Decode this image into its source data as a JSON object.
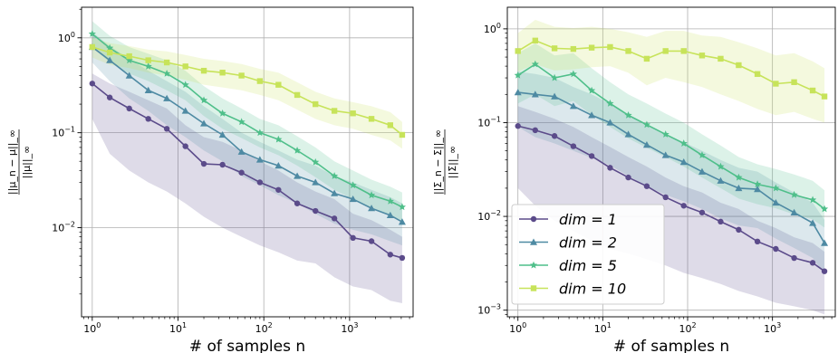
{
  "chart_data": [
    {
      "type": "line",
      "xscale": "log",
      "yscale": "log",
      "xlim": [
        0.75,
        5500
      ],
      "ylim": [
        0.00115,
        2.1
      ],
      "xlabel": "# of samples n",
      "ylabel_num": "||μ_n − μ||_∞",
      "ylabel_den": "||μ||_∞",
      "grid": true,
      "xticks": [
        {
          "value": 1,
          "base": "10",
          "exp": "0"
        },
        {
          "value": 10,
          "base": "10",
          "exp": "1"
        },
        {
          "value": 100,
          "base": "10",
          "exp": "2"
        },
        {
          "value": 1000,
          "base": "10",
          "exp": "3"
        }
      ],
      "yticks": [
        {
          "value": 0.01,
          "base": "10",
          "exp": "−2"
        },
        {
          "value": 0.1,
          "base": "10",
          "exp": "−1"
        },
        {
          "value": 1,
          "base": "10",
          "exp": "0"
        }
      ],
      "x": [
        1,
        1.6,
        2.7,
        4.5,
        7.4,
        12.2,
        20,
        33,
        55,
        90,
        148,
        245,
        400,
        665,
        1095,
        1800,
        2980,
        4100
      ],
      "series": [
        {
          "name": "dim = 1",
          "color": "#5b4b8a",
          "marker": "circle",
          "values": [
            0.33,
            0.235,
            0.18,
            0.14,
            0.11,
            0.072,
            0.047,
            0.046,
            0.038,
            0.03,
            0.025,
            0.018,
            0.015,
            0.0125,
            0.0078,
            0.0072,
            0.0052,
            0.0048
          ],
          "lower": [
            0.14,
            0.06,
            0.04,
            0.03,
            0.024,
            0.018,
            0.013,
            0.01,
            0.008,
            0.0065,
            0.0055,
            0.0045,
            0.0042,
            0.003,
            0.0024,
            0.0022,
            0.0017,
            0.0016
          ],
          "upper": [
            0.42,
            0.33,
            0.27,
            0.22,
            0.18,
            0.12,
            0.09,
            0.08,
            0.065,
            0.05,
            0.04,
            0.03,
            0.024,
            0.02,
            0.014,
            0.012,
            0.0095,
            0.008
          ]
        },
        {
          "name": "dim = 2",
          "color": "#4e8aa3",
          "marker": "triangle",
          "values": [
            0.8,
            0.58,
            0.4,
            0.28,
            0.23,
            0.17,
            0.125,
            0.095,
            0.063,
            0.052,
            0.045,
            0.035,
            0.03,
            0.023,
            0.02,
            0.016,
            0.0135,
            0.0115
          ],
          "lower": [
            0.55,
            0.35,
            0.23,
            0.17,
            0.12,
            0.09,
            0.065,
            0.05,
            0.035,
            0.028,
            0.022,
            0.018,
            0.014,
            0.011,
            0.0095,
            0.0085,
            0.0072,
            0.0065
          ],
          "upper": [
            1.15,
            0.82,
            0.6,
            0.45,
            0.35,
            0.27,
            0.19,
            0.14,
            0.1,
            0.08,
            0.065,
            0.052,
            0.045,
            0.035,
            0.03,
            0.025,
            0.021,
            0.018
          ]
        },
        {
          "name": "dim = 5",
          "color": "#4fbf8a",
          "marker": "star",
          "values": [
            1.1,
            0.78,
            0.58,
            0.5,
            0.42,
            0.32,
            0.22,
            0.16,
            0.13,
            0.1,
            0.085,
            0.065,
            0.049,
            0.035,
            0.028,
            0.022,
            0.019,
            0.0165
          ],
          "lower": [
            0.8,
            0.55,
            0.42,
            0.35,
            0.28,
            0.22,
            0.15,
            0.11,
            0.088,
            0.07,
            0.058,
            0.045,
            0.034,
            0.025,
            0.02,
            0.016,
            0.0135,
            0.0118
          ],
          "upper": [
            1.5,
            1.05,
            0.8,
            0.68,
            0.58,
            0.45,
            0.31,
            0.23,
            0.18,
            0.14,
            0.12,
            0.092,
            0.07,
            0.05,
            0.04,
            0.032,
            0.027,
            0.0235
          ]
        },
        {
          "name": "dim = 10",
          "color": "#c7e35a",
          "marker": "square",
          "values": [
            0.8,
            0.7,
            0.64,
            0.58,
            0.55,
            0.5,
            0.45,
            0.43,
            0.4,
            0.35,
            0.32,
            0.25,
            0.2,
            0.17,
            0.16,
            0.14,
            0.12,
            0.095
          ],
          "lower": [
            0.62,
            0.52,
            0.48,
            0.43,
            0.4,
            0.36,
            0.32,
            0.3,
            0.28,
            0.25,
            0.22,
            0.175,
            0.14,
            0.12,
            0.11,
            0.095,
            0.083,
            0.068
          ],
          "upper": [
            1.0,
            0.88,
            0.82,
            0.75,
            0.72,
            0.66,
            0.6,
            0.57,
            0.53,
            0.47,
            0.43,
            0.34,
            0.27,
            0.23,
            0.21,
            0.19,
            0.165,
            0.13
          ]
        }
      ]
    },
    {
      "type": "line",
      "xscale": "log",
      "yscale": "log",
      "xlim": [
        0.75,
        5500
      ],
      "ylim": [
        0.00085,
        1.7
      ],
      "xlabel": "# of samples n",
      "ylabel_num": "||Σ_n − Σ||_∞",
      "ylabel_den": "||Σ||_∞",
      "grid": true,
      "legend": "lower-left",
      "xticks": [
        {
          "value": 1,
          "base": "10",
          "exp": "0"
        },
        {
          "value": 10,
          "base": "10",
          "exp": "1"
        },
        {
          "value": 100,
          "base": "10",
          "exp": "2"
        },
        {
          "value": 1000,
          "base": "10",
          "exp": "3"
        }
      ],
      "yticks": [
        {
          "value": 0.001,
          "base": "10",
          "exp": "−3"
        },
        {
          "value": 0.01,
          "base": "10",
          "exp": "−2"
        },
        {
          "value": 0.1,
          "base": "10",
          "exp": "−1"
        },
        {
          "value": 1,
          "base": "10",
          "exp": "0"
        }
      ],
      "x": [
        1,
        1.6,
        2.7,
        4.5,
        7.4,
        12.2,
        20,
        33,
        55,
        90,
        148,
        245,
        400,
        665,
        1095,
        1800,
        2980,
        4100
      ],
      "series": [
        {
          "name": "dim = 1",
          "color": "#5b4b8a",
          "marker": "circle",
          "values": [
            0.092,
            0.083,
            0.072,
            0.056,
            0.044,
            0.033,
            0.026,
            0.021,
            0.016,
            0.013,
            0.011,
            0.0088,
            0.0072,
            0.0054,
            0.0045,
            0.0036,
            0.0032,
            0.0026
          ],
          "lower": [
            0.02,
            0.013,
            0.009,
            0.007,
            0.0055,
            0.0045,
            0.004,
            0.0035,
            0.003,
            0.0025,
            0.0022,
            0.0019,
            0.0016,
            0.0014,
            0.0012,
            0.0011,
            0.001,
            0.0009
          ],
          "upper": [
            0.15,
            0.13,
            0.11,
            0.09,
            0.07,
            0.055,
            0.043,
            0.034,
            0.026,
            0.021,
            0.018,
            0.014,
            0.012,
            0.009,
            0.0075,
            0.006,
            0.0052,
            0.0042
          ]
        },
        {
          "name": "dim = 2",
          "color": "#4e8aa3",
          "marker": "triangle",
          "values": [
            0.21,
            0.2,
            0.19,
            0.15,
            0.12,
            0.1,
            0.075,
            0.058,
            0.045,
            0.038,
            0.03,
            0.024,
            0.02,
            0.0195,
            0.014,
            0.011,
            0.0085,
            0.0052
          ],
          "lower": [
            0.09,
            0.07,
            0.06,
            0.05,
            0.042,
            0.035,
            0.027,
            0.021,
            0.017,
            0.0145,
            0.012,
            0.0095,
            0.008,
            0.0075,
            0.0058,
            0.0046,
            0.0036,
            0.0024
          ],
          "upper": [
            0.35,
            0.33,
            0.3,
            0.24,
            0.2,
            0.16,
            0.12,
            0.095,
            0.075,
            0.062,
            0.05,
            0.04,
            0.033,
            0.03,
            0.023,
            0.018,
            0.014,
            0.0092
          ]
        },
        {
          "name": "dim = 5",
          "color": "#4fbf8a",
          "marker": "star",
          "values": [
            0.32,
            0.42,
            0.3,
            0.33,
            0.22,
            0.16,
            0.12,
            0.095,
            0.075,
            0.06,
            0.045,
            0.034,
            0.026,
            0.022,
            0.02,
            0.017,
            0.015,
            0.012
          ],
          "lower": [
            0.16,
            0.2,
            0.15,
            0.17,
            0.12,
            0.09,
            0.068,
            0.054,
            0.043,
            0.034,
            0.026,
            0.02,
            0.0155,
            0.0135,
            0.0122,
            0.0105,
            0.0093,
            0.0076
          ],
          "upper": [
            0.55,
            0.7,
            0.52,
            0.55,
            0.38,
            0.27,
            0.2,
            0.16,
            0.125,
            0.1,
            0.075,
            0.057,
            0.043,
            0.036,
            0.032,
            0.028,
            0.024,
            0.019
          ]
        },
        {
          "name": "dim = 10",
          "color": "#c7e35a",
          "marker": "square",
          "values": [
            0.58,
            0.75,
            0.62,
            0.61,
            0.63,
            0.64,
            0.58,
            0.48,
            0.58,
            0.58,
            0.52,
            0.48,
            0.41,
            0.33,
            0.26,
            0.27,
            0.22,
            0.19
          ],
          "lower": [
            0.35,
            0.42,
            0.36,
            0.37,
            0.39,
            0.4,
            0.34,
            0.25,
            0.3,
            0.27,
            0.24,
            0.2,
            0.17,
            0.14,
            0.12,
            0.13,
            0.11,
            0.1
          ],
          "upper": [
            0.9,
            1.25,
            1.05,
            1.02,
            1.05,
            1.0,
            0.92,
            0.82,
            0.95,
            0.95,
            0.85,
            0.82,
            0.72,
            0.62,
            0.52,
            0.55,
            0.45,
            0.38
          ]
        }
      ]
    }
  ]
}
